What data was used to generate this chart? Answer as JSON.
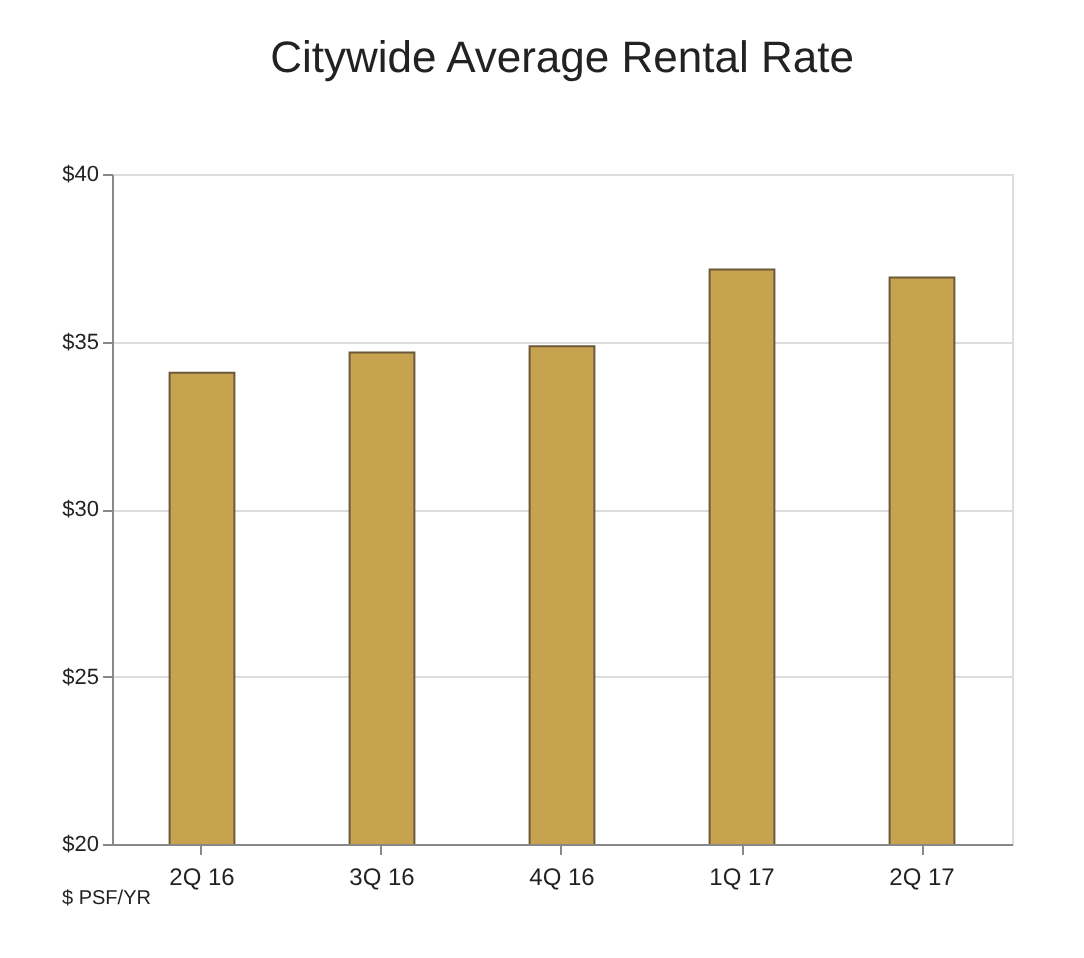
{
  "chart_data": {
    "type": "bar",
    "title": "Citywide Average Rental Rate",
    "categories": [
      "2Q 16",
      "3Q 16",
      "4Q 16",
      "1Q 17",
      "2Q 17"
    ],
    "values": [
      34.07,
      34.67,
      34.86,
      37.15,
      36.91
    ],
    "color": "#c8a34f",
    "ylim": [
      20,
      40
    ],
    "yticks": [
      {
        "value": 20,
        "label": "$20"
      },
      {
        "value": 25,
        "label": "$25"
      },
      {
        "value": 30,
        "label": "$30"
      },
      {
        "value": 35,
        "label": "$35"
      },
      {
        "value": 40,
        "label": "$40"
      }
    ],
    "grid": "y",
    "annotations": [
      "$ PSF/YR"
    ]
  }
}
